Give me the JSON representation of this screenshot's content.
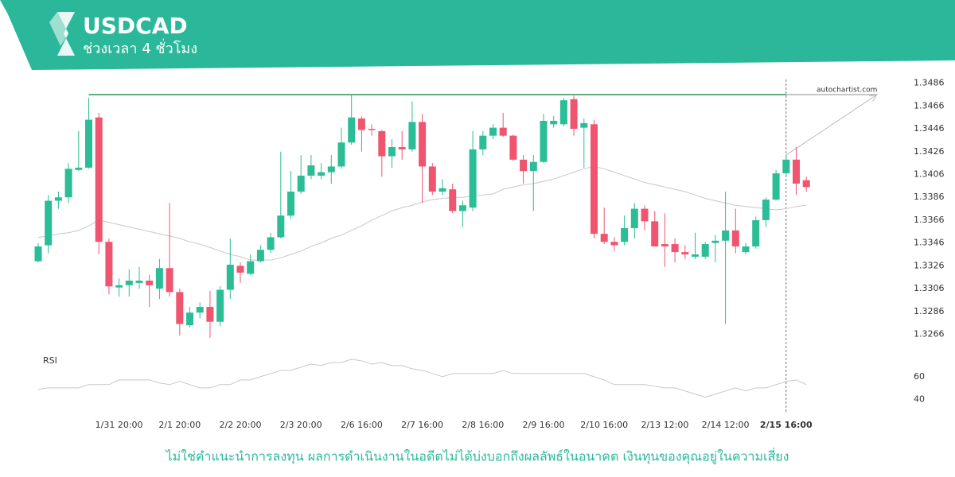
{
  "header": {
    "title": "USDCAD",
    "subtitle": "ช่วงเวลา 4 ชั่วโมง"
  },
  "source": "autochartist.com",
  "footer": "ไม่ใช่คำแนะนำการลงทุน ผลการดำเนินงานในอดีตไม่ได้บ่งบอกถึงผลลัพธ์ในอนาคต เงินทุนของคุณอยู่ในความเสี่ยง",
  "chart_data": [
    {
      "type": "candlestick",
      "up_color": "#2bbd96",
      "down_color": "#f0556f",
      "ma_color": "#c8c8c8",
      "grid": false,
      "categories": [
        null,
        null,
        null,
        null,
        null,
        null,
        null,
        null,
        "1/31 20:00",
        null,
        null,
        null,
        null,
        null,
        "2/1 20:00",
        null,
        null,
        null,
        null,
        null,
        "2/2 20:00",
        null,
        null,
        null,
        null,
        null,
        "2/3 20:00",
        null,
        null,
        null,
        null,
        null,
        "2/6 16:00",
        null,
        null,
        null,
        null,
        null,
        "2/7 16:00",
        null,
        null,
        null,
        null,
        null,
        "2/8 16:00",
        null,
        null,
        null,
        null,
        null,
        "2/9 16:00",
        null,
        null,
        null,
        null,
        null,
        "2/10 16:00",
        null,
        null,
        null,
        null,
        null,
        "2/13 12:00",
        null,
        null,
        null,
        null,
        null,
        "2/14 12:00",
        null,
        null,
        null,
        null,
        null,
        "2/15 16:00",
        null,
        null
      ],
      "current": 74,
      "open": [
        1.333,
        1.3344,
        1.3383,
        1.3386,
        1.341,
        1.3412,
        1.3456,
        1.3347,
        1.3307,
        1.3309,
        1.3311,
        1.3313,
        1.3306,
        1.3324,
        1.3303,
        1.3274,
        1.3285,
        1.329,
        1.3277,
        1.3305,
        1.3326,
        1.3319,
        1.333,
        1.334,
        1.3351,
        1.337,
        1.3391,
        1.3405,
        1.3405,
        1.3408,
        1.3413,
        1.3434,
        1.3455,
        1.3446,
        1.3444,
        1.3422,
        1.343,
        1.3428,
        1.3452,
        1.3413,
        1.3391,
        1.3393,
        1.3374,
        1.3377,
        1.3428,
        1.344,
        1.3447,
        1.344,
        1.3419,
        1.3409,
        1.3417,
        1.345,
        1.345,
        1.3472,
        1.3447,
        1.345,
        1.3354,
        1.3347,
        1.3347,
        1.3359,
        1.3376,
        1.3365,
        1.3345,
        1.3345,
        1.3338,
        1.3334,
        1.3334,
        1.3346,
        1.3348,
        1.3357,
        1.3338,
        1.3343,
        1.3366,
        1.3384,
        1.3407,
        1.3419,
        1.3401
      ],
      "high": [
        1.3346,
        1.3388,
        1.3391,
        1.3416,
        1.3444,
        1.3473,
        1.346,
        1.335,
        1.3315,
        1.3323,
        1.3325,
        1.3318,
        1.3332,
        1.3381,
        1.3306,
        1.329,
        1.3294,
        1.3304,
        1.3308,
        1.335,
        1.3329,
        1.3336,
        1.3344,
        1.3355,
        1.3426,
        1.3409,
        1.3423,
        1.3423,
        1.3416,
        1.3423,
        1.3447,
        1.3476,
        1.3457,
        1.345,
        1.3445,
        1.3437,
        1.3444,
        1.347,
        1.3459,
        1.3416,
        1.3402,
        1.3398,
        1.3383,
        1.3444,
        1.3444,
        1.345,
        1.346,
        1.3441,
        1.3423,
        1.3423,
        1.3459,
        1.3457,
        1.3473,
        1.3475,
        1.3455,
        1.3454,
        1.3377,
        1.3351,
        1.337,
        1.3381,
        1.3379,
        1.3374,
        1.3372,
        1.335,
        1.3344,
        1.3355,
        1.3347,
        1.3353,
        1.3391,
        1.3376,
        1.3346,
        1.3369,
        1.3386,
        1.341,
        1.3423,
        1.343,
        1.3404
      ],
      "low": [
        1.3329,
        1.3337,
        1.3376,
        1.3381,
        1.3409,
        1.3411,
        1.3336,
        1.3301,
        1.3299,
        1.3299,
        1.3306,
        1.329,
        1.3297,
        1.3299,
        1.3265,
        1.3272,
        1.328,
        1.3263,
        1.3273,
        1.3297,
        1.3311,
        1.3318,
        1.3329,
        1.3337,
        1.335,
        1.3367,
        1.3389,
        1.3402,
        1.3402,
        1.3398,
        1.3411,
        1.3432,
        1.3426,
        1.344,
        1.3404,
        1.3412,
        1.3419,
        1.3426,
        1.3381,
        1.3388,
        1.3388,
        1.3372,
        1.336,
        1.3374,
        1.3423,
        1.3437,
        1.3439,
        1.3418,
        1.3398,
        1.3374,
        1.3416,
        1.3447,
        1.3448,
        1.344,
        1.3412,
        1.335,
        1.3345,
        1.3339,
        1.3344,
        1.335,
        1.3357,
        1.3343,
        1.3325,
        1.3329,
        1.3332,
        1.3332,
        1.3332,
        1.3329,
        1.3275,
        1.3337,
        1.3336,
        1.3341,
        1.336,
        1.3383,
        1.3404,
        1.3388,
        1.3391
      ],
      "close": [
        1.3343,
        1.3383,
        1.3386,
        1.3411,
        1.3412,
        1.3454,
        1.3347,
        1.3308,
        1.3309,
        1.3313,
        1.3313,
        1.3309,
        1.3324,
        1.3303,
        1.3275,
        1.3285,
        1.329,
        1.3277,
        1.3305,
        1.3327,
        1.332,
        1.333,
        1.334,
        1.3351,
        1.337,
        1.3391,
        1.3405,
        1.3414,
        1.3408,
        1.3413,
        1.3434,
        1.3456,
        1.3445,
        1.3445,
        1.3422,
        1.343,
        1.3428,
        1.3452,
        1.3413,
        1.3391,
        1.3394,
        1.3374,
        1.3379,
        1.3428,
        1.344,
        1.3447,
        1.344,
        1.3419,
        1.3409,
        1.3417,
        1.3453,
        1.3453,
        1.3471,
        1.3446,
        1.3451,
        1.3354,
        1.3347,
        1.3344,
        1.3359,
        1.3376,
        1.3365,
        1.3343,
        1.3343,
        1.3338,
        1.3336,
        1.3336,
        1.3345,
        1.3348,
        1.3357,
        1.3343,
        1.3343,
        1.3366,
        1.3384,
        1.3407,
        1.3419,
        1.3398,
        1.3395
      ],
      "ma": [
        1.3351,
        1.3352,
        1.3354,
        1.3355,
        1.3357,
        1.3361,
        1.3366,
        1.3364,
        1.3362,
        1.336,
        1.3358,
        1.3356,
        1.3354,
        1.3352,
        1.335,
        1.3347,
        1.3345,
        1.3342,
        1.3339,
        1.3336,
        1.3334,
        1.3331,
        1.3331,
        1.3331,
        1.3333,
        1.3336,
        1.3339,
        1.3343,
        1.3346,
        1.335,
        1.3353,
        1.3357,
        1.3361,
        1.3366,
        1.337,
        1.3374,
        1.3377,
        1.3379,
        1.3382,
        1.3384,
        1.3385,
        1.3386,
        1.3386,
        1.3387,
        1.3388,
        1.3389,
        1.3393,
        1.3395,
        1.3397,
        1.3398,
        1.34,
        1.3402,
        1.3405,
        1.3408,
        1.3411,
        1.3413,
        1.3411,
        1.3408,
        1.3405,
        1.3402,
        1.3399,
        1.3397,
        1.3395,
        1.3393,
        1.3391,
        1.3388,
        1.3385,
        1.3383,
        1.3381,
        1.3379,
        1.3378,
        1.3377,
        1.3376,
        1.3375,
        1.3376,
        1.3378,
        1.3379
      ],
      "resistance": {
        "value": 1.3476,
        "from": 5,
        "to": 74,
        "color": "#5fae7f"
      },
      "forecast": {
        "from": [
          74,
          1.3423
        ],
        "to": [
          83,
          1.3476
        ]
      },
      "ylim": [
        1.3258,
        1.3492
      ],
      "yticks": [
        1.3266,
        1.3286,
        1.3306,
        1.3326,
        1.3346,
        1.3366,
        1.3386,
        1.3406,
        1.3426,
        1.3446,
        1.3466,
        1.3486
      ]
    },
    {
      "type": "line",
      "title": "RSI",
      "color": "#c8c8c8",
      "values": [
        49.0,
        50.3,
        50.3,
        50.3,
        50.3,
        53.1,
        53.1,
        53.1,
        57.2,
        57.2,
        57.2,
        57.2,
        54.5,
        53.1,
        55.9,
        53.1,
        50.3,
        50.3,
        53.1,
        53.1,
        57.2,
        57.2,
        60.0,
        62.8,
        65.5,
        65.5,
        68.3,
        71.0,
        69.7,
        72.4,
        72.4,
        75.2,
        73.8,
        71.0,
        72.4,
        69.7,
        69.7,
        66.9,
        65.5,
        62.8,
        60.0,
        62.8,
        62.8,
        62.8,
        62.8,
        62.8,
        65.5,
        62.8,
        62.8,
        62.8,
        62.8,
        62.8,
        62.8,
        62.8,
        62.8,
        60.0,
        57.2,
        53.1,
        53.1,
        53.1,
        53.1,
        51.7,
        50.3,
        50.3,
        47.6,
        44.8,
        42.1,
        44.8,
        47.6,
        50.3,
        47.6,
        50.3,
        50.3,
        53.1,
        55.9,
        57.2,
        53.1
      ],
      "ylim": [
        28,
        80
      ],
      "yticks": [
        40,
        60
      ]
    }
  ]
}
